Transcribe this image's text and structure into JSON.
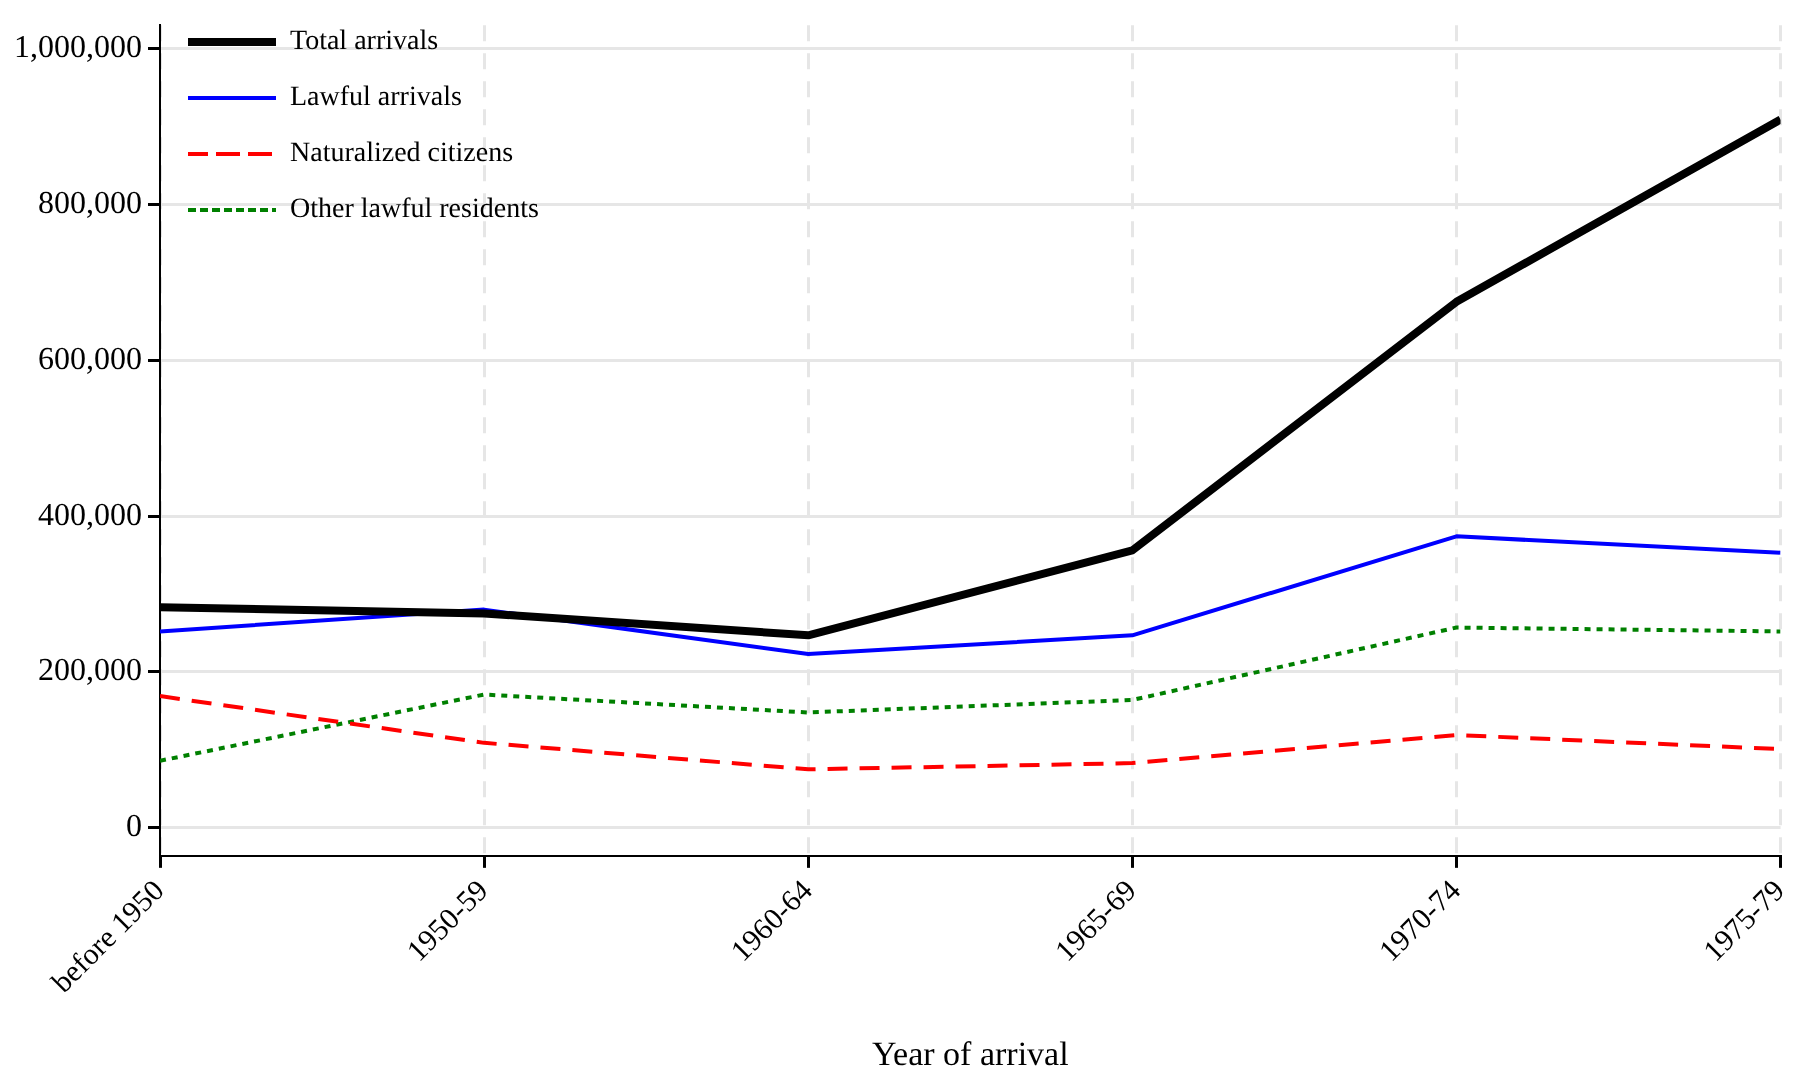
{
  "chart_data": {
    "type": "line",
    "xlabel": "Year of arrival",
    "categories": [
      "before 1950",
      "1950-59",
      "1960-64",
      "1965-69",
      "1970-74",
      "1975-79"
    ],
    "ylim": [
      -36000,
      1030000
    ],
    "yticks": [
      {
        "value": 0,
        "label": "0"
      },
      {
        "value": 200000,
        "label": "200,000"
      },
      {
        "value": 400000,
        "label": "400,000"
      },
      {
        "value": 600000,
        "label": "600,000"
      },
      {
        "value": 800000,
        "label": "800,000"
      },
      {
        "value": 1000000,
        "label": "1,000,000"
      }
    ],
    "series": [
      {
        "name": "Total arrivals",
        "color": "#000000",
        "line_style": "solid",
        "values": [
          283000,
          275000,
          247000,
          356000,
          675000,
          909000
        ]
      },
      {
        "name": "Lawful arrivals",
        "color": "#0000ff",
        "line_style": "solid",
        "values": [
          252000,
          280000,
          223000,
          247000,
          374000,
          353000
        ]
      },
      {
        "name": "Naturalized citizens",
        "color": "#ff0000",
        "line_style": "dashed",
        "values": [
          169000,
          109000,
          75000,
          83000,
          119000,
          101000
        ]
      },
      {
        "name": "Other lawful residents",
        "color": "#008000",
        "line_style": "dotted",
        "values": [
          86000,
          171000,
          148000,
          164000,
          257000,
          252000
        ]
      }
    ],
    "grid": true,
    "legend": "top left",
    "marker": "none"
  }
}
